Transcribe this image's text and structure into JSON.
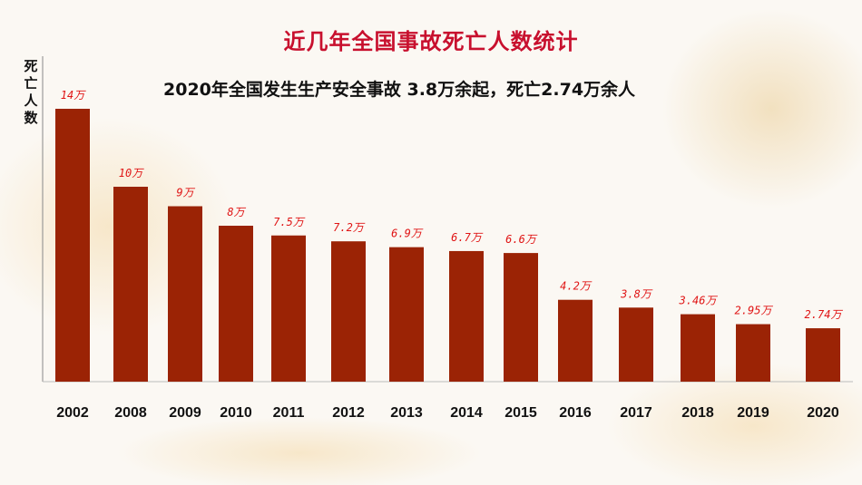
{
  "title": "近几年全国事故死亡人数统计",
  "subtitle": "2020年全国发生生产安全事故 3.8万余起，死亡2.74万余人",
  "chart_data": {
    "type": "bar",
    "ylabel": "死亡人数",
    "categories": [
      "2002",
      "2008",
      "2009",
      "2010",
      "2011",
      "2012",
      "2013",
      "2014",
      "2015",
      "2016",
      "2017",
      "2018",
      "2019",
      "2020"
    ],
    "values": [
      14,
      10,
      9,
      8,
      7.5,
      7.2,
      6.9,
      6.7,
      6.6,
      4.2,
      3.8,
      3.46,
      2.95,
      2.74
    ],
    "value_labels": [
      "14万",
      "10万",
      "9万",
      "8万",
      "7.5万",
      "7.2万",
      "6.9万",
      "6.7万",
      "6.6万",
      "4.2万",
      "3.8万",
      "3.46万",
      "2.95万",
      "2.74万"
    ],
    "unit": "万",
    "ylim": [
      0,
      14
    ],
    "grid": false,
    "bar_color": "#9b2305",
    "label_color": "#e01515"
  }
}
